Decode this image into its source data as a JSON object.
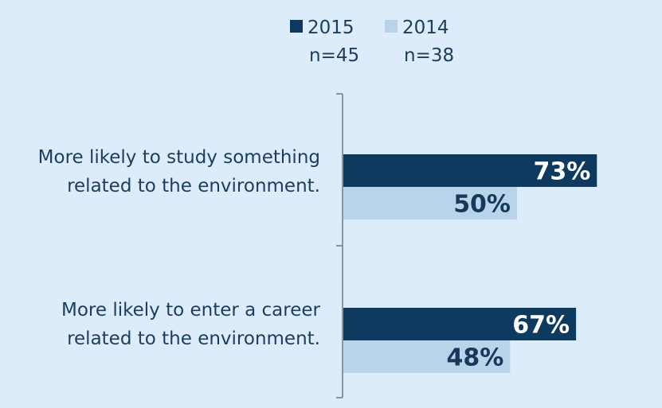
{
  "chart_data": {
    "type": "bar",
    "orientation": "horizontal",
    "categories": [
      [
        "More likely to study something",
        "related to the environment."
      ],
      [
        "More likely to enter a career",
        "related to the environment."
      ]
    ],
    "series": [
      {
        "name": "2015",
        "n_label": "n=45",
        "color": "#0f3a5f",
        "label_color": "#ffffff",
        "values": [
          73,
          67
        ],
        "value_labels": [
          "73%",
          "67%"
        ]
      },
      {
        "name": "2014",
        "n_label": "n=38",
        "color": "#b9d3ea",
        "label_color": "#16385a",
        "values": [
          50,
          48
        ],
        "value_labels": [
          "50%",
          "48%"
        ]
      }
    ],
    "xlim": [
      0,
      100
    ],
    "grid": false,
    "legend_position": "top"
  }
}
